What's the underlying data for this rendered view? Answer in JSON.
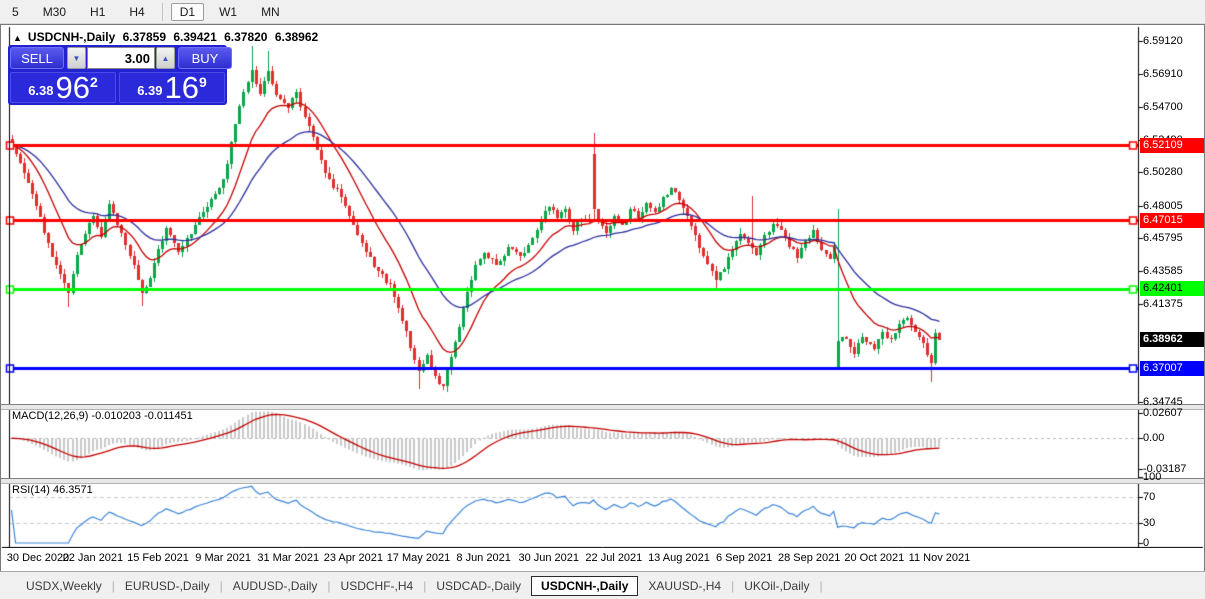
{
  "toolbar": {
    "timeframe_groups": [
      [
        "5",
        "M30",
        "H1",
        "H4"
      ],
      [
        "D1",
        "W1",
        "MN"
      ]
    ],
    "active_timeframe": "D1"
  },
  "window": {
    "header": {
      "collapse_icon": "▲",
      "symbol": "USDCNH-,Daily",
      "open": "6.37859",
      "high": "6.39421",
      "low": "6.37820",
      "close": "6.38962"
    }
  },
  "trade_panel": {
    "sell_label": "SELL",
    "buy_label": "BUY",
    "volume": "3.00",
    "spinner_down_icon": "▼",
    "spinner_up_icon": "▲",
    "sell_price": {
      "prefix": "6.38",
      "big": "96",
      "sup": "2"
    },
    "buy_price": {
      "prefix": "6.39",
      "big": "16",
      "sup": "9"
    }
  },
  "price_axis_labels": [
    "6.59120",
    "6.56910",
    "6.54700",
    "6.52490",
    "6.50280",
    "6.48005",
    "6.45795",
    "6.43585",
    "6.41375",
    "6.34745"
  ],
  "hlines": [
    {
      "price": 6.52109,
      "label": "6.52109",
      "color": "#ff0000",
      "text_color": "#ffffff"
    },
    {
      "price": 6.47015,
      "label": "6.47015",
      "color": "#ff0000",
      "text_color": "#ffffff"
    },
    {
      "price": 6.42401,
      "label": "6.42401",
      "color": "#00ff00",
      "text_color": "#000000"
    },
    {
      "price": 6.37007,
      "label": "6.37007",
      "color": "#0000ff",
      "text_color": "#ffffff"
    }
  ],
  "current_price": {
    "label": "6.38962",
    "value": 6.38962,
    "bg": "#000000",
    "text_color": "#ffffff"
  },
  "indicators": {
    "macd": {
      "label": "MACD(12,26,9) -0.010203 -0.011451",
      "axis_labels": [
        {
          "text": "0.02607",
          "v": 0.02607
        },
        {
          "text": "0.00",
          "v": 0
        },
        {
          "text": "-0.03187",
          "v": -0.03187
        }
      ],
      "histogram_color": "#c9c9c9",
      "signal_color": "#c40000",
      "zero_line_color": "#b8b8b8"
    },
    "rsi": {
      "label": "RSI(14) 46.3571",
      "axis_labels": [
        {
          "text": "100",
          "v": 100
        },
        {
          "text": "70",
          "v": 70
        },
        {
          "text": "30",
          "v": 30
        },
        {
          "text": "0",
          "v": 0
        }
      ],
      "line_color": "#3c85d8",
      "level_lines": [
        70,
        30
      ],
      "level_line_color": "#c8c8c8"
    }
  },
  "date_labels": [
    "30 Dec 2020",
    "22 Jan 2021",
    "15 Feb 2021",
    "9 Mar 2021",
    "31 Mar 2021",
    "23 Apr 2021",
    "17 May 2021",
    "8 Jun 2021",
    "30 Jun 2021",
    "22 Jul 2021",
    "13 Aug 2021",
    "6 Sep 2021",
    "28 Sep 2021",
    "20 Oct 2021",
    "11 Nov 2021"
  ],
  "chart_data": {
    "type": "candlestick",
    "symbol": "USDCNH-,Daily",
    "bars": 229,
    "price_range": [
      6.346,
      6.601
    ],
    "macd_value_range": [
      -0.0397,
      0.03
    ],
    "up_color": "#0aa648",
    "down_color": "#e02f2f",
    "ma_fast": {
      "period": 13,
      "color": "#c40000"
    },
    "ma_slow": {
      "period": 30,
      "color": "#2e2e9e"
    },
    "close_waypoints": [
      [
        0,
        6.521
      ],
      [
        2,
        6.509
      ],
      [
        5,
        6.488
      ],
      [
        8,
        6.462
      ],
      [
        11,
        6.44
      ],
      [
        14,
        6.421
      ],
      [
        16,
        6.447
      ],
      [
        18,
        6.461
      ],
      [
        20,
        6.473
      ],
      [
        22,
        6.459
      ],
      [
        24,
        6.481
      ],
      [
        27,
        6.462
      ],
      [
        30,
        6.44
      ],
      [
        32,
        6.421
      ],
      [
        34,
        6.431
      ],
      [
        36,
        6.451
      ],
      [
        38,
        6.465
      ],
      [
        41,
        6.449
      ],
      [
        44,
        6.461
      ],
      [
        47,
        6.476
      ],
      [
        50,
        6.488
      ],
      [
        52,
        6.498
      ],
      [
        54,
        6.523
      ],
      [
        57,
        6.557
      ],
      [
        59,
        6.572
      ],
      [
        61,
        6.556
      ],
      [
        63,
        6.571
      ],
      [
        65,
        6.555
      ],
      [
        68,
        6.546
      ],
      [
        70,
        6.557
      ],
      [
        72,
        6.54
      ],
      [
        75,
        6.518
      ],
      [
        78,
        6.498
      ],
      [
        81,
        6.486
      ],
      [
        84,
        6.467
      ],
      [
        87,
        6.449
      ],
      [
        90,
        6.436
      ],
      [
        93,
        6.427
      ],
      [
        96,
        6.402
      ],
      [
        98,
        6.384
      ],
      [
        100,
        6.368
      ],
      [
        102,
        6.379
      ],
      [
        104,
        6.365
      ],
      [
        106,
        6.358
      ],
      [
        108,
        6.378
      ],
      [
        110,
        6.398
      ],
      [
        112,
        6.422
      ],
      [
        114,
        6.44
      ],
      [
        116,
        6.448
      ],
      [
        119,
        6.44
      ],
      [
        122,
        6.452
      ],
      [
        125,
        6.446
      ],
      [
        128,
        6.458
      ],
      [
        130,
        6.47
      ],
      [
        132,
        6.479
      ],
      [
        134,
        6.472
      ],
      [
        136,
        6.478
      ],
      [
        138,
        6.463
      ],
      [
        140,
        6.471
      ],
      [
        142,
        6.47
      ],
      [
        143,
        6.478
      ],
      [
        144,
        6.471
      ],
      [
        146,
        6.462
      ],
      [
        148,
        6.473
      ],
      [
        150,
        6.467
      ],
      [
        152,
        6.478
      ],
      [
        154,
        6.472
      ],
      [
        156,
        6.482
      ],
      [
        158,
        6.476
      ],
      [
        160,
        6.486
      ],
      [
        162,
        6.492
      ],
      [
        164,
        6.484
      ],
      [
        166,
        6.473
      ],
      [
        168,
        6.46
      ],
      [
        170,
        6.446
      ],
      [
        173,
        6.43
      ],
      [
        175,
        6.437
      ],
      [
        177,
        6.45
      ],
      [
        179,
        6.461
      ],
      [
        181,
        6.455
      ],
      [
        183,
        6.447
      ],
      [
        185,
        6.46
      ],
      [
        187,
        6.468
      ],
      [
        189,
        6.464
      ],
      [
        191,
        6.452
      ],
      [
        193,
        6.445
      ],
      [
        195,
        6.456
      ],
      [
        197,
        6.464
      ],
      [
        199,
        6.45
      ],
      [
        201,
        6.444
      ],
      [
        202,
        6.452
      ],
      [
        203,
        6.3885
      ],
      [
        205,
        6.39
      ],
      [
        207,
        6.38
      ],
      [
        209,
        6.391
      ],
      [
        212,
        6.383
      ],
      [
        214,
        6.395
      ],
      [
        216,
        6.39
      ],
      [
        218,
        6.4
      ],
      [
        220,
        6.404
      ],
      [
        222,
        6.395
      ],
      [
        224,
        6.387
      ],
      [
        226,
        6.374
      ],
      [
        227,
        6.394
      ],
      [
        228,
        6.38962
      ]
    ],
    "bar_overrides": {
      "14": {
        "l": 6.4115
      },
      "32": {
        "l": 6.4125
      },
      "59": {
        "h": 6.588
      },
      "63": {
        "h": 6.5845
      },
      "100": {
        "l": 6.3562
      },
      "106": {
        "l": 6.3558
      },
      "143": {
        "o": 6.515,
        "h": 6.529
      },
      "173": {
        "l": 6.4243
      },
      "182": {
        "h": 6.487
      },
      "203": {
        "o": 6.371,
        "h": 6.478,
        "l": 6.369
      },
      "226": {
        "l": 6.361
      }
    },
    "noise_seed": 11,
    "noise_amp": 0.0022,
    "wick_amp": 0.004,
    "date_tick_first_bar": 4,
    "date_tick_step": 16
  },
  "bottom_tabs": {
    "separator": "|",
    "tabs": [
      {
        "label": "USDX,Weekly",
        "active": false
      },
      {
        "label": "EURUSD-,Daily",
        "active": false
      },
      {
        "label": "AUDUSD-,Daily",
        "active": false
      },
      {
        "label": "USDCHF-,H4",
        "active": false
      },
      {
        "label": "USDCAD-,Daily",
        "active": false
      },
      {
        "label": "USDCNH-,Daily",
        "active": true
      },
      {
        "label": "XAUUSD-,H4",
        "active": false
      },
      {
        "label": "UKOil-,Daily",
        "active": false
      }
    ]
  }
}
